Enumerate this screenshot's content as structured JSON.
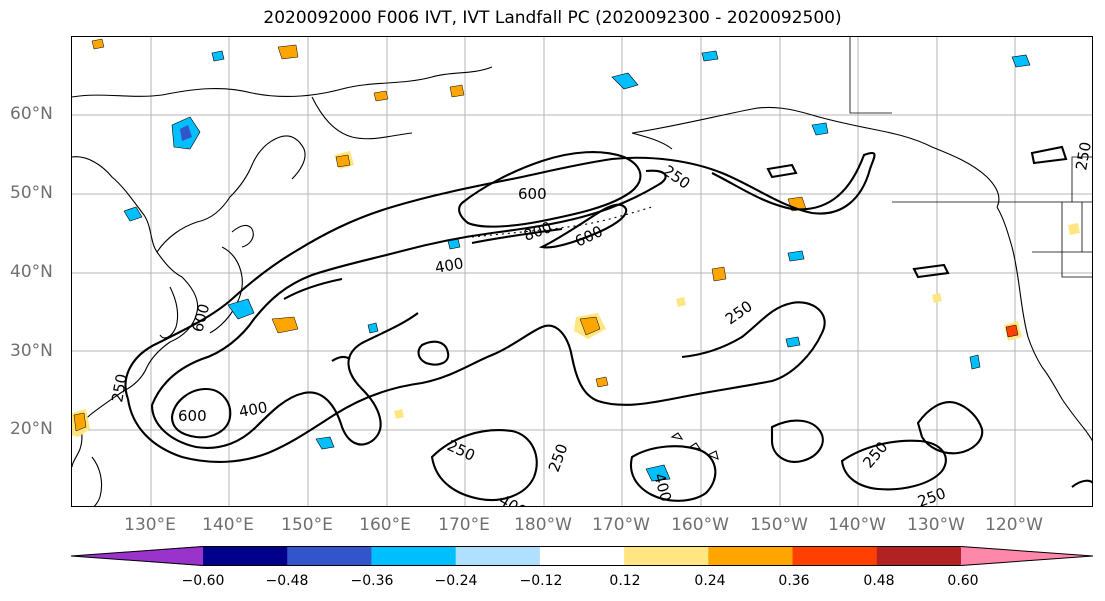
{
  "title": "2020092000 F006 IVT, IVT Landfall PC (2020092300 - 2020092500)",
  "lat_labels": [
    "60°N",
    "50°N",
    "40°N",
    "30°N",
    "20°N"
  ],
  "lon_labels": [
    "130°E",
    "140°E",
    "150°E",
    "160°E",
    "170°E",
    "180°W",
    "170°W",
    "160°W",
    "150°W",
    "140°W",
    "130°W",
    "120°W"
  ],
  "contour_labels": [
    "600",
    "600",
    "800",
    "600",
    "400",
    "600",
    "400",
    "250",
    "250",
    "250",
    "250",
    "250",
    "400",
    "400",
    "250",
    "250",
    "250"
  ],
  "colorbar": {
    "ticks": [
      "−0.60",
      "−0.48",
      "−0.36",
      "−0.24",
      "−0.12",
      "0.12",
      "0.24",
      "0.36",
      "0.48",
      "0.60"
    ],
    "colors": [
      "#9933cc",
      "#00008b",
      "#3355cc",
      "#00bfff",
      "#b0e0ff",
      "#ffffff",
      "#ffe680",
      "#ffa500",
      "#ff4000",
      "#b22222",
      "#ff88aa"
    ]
  }
}
